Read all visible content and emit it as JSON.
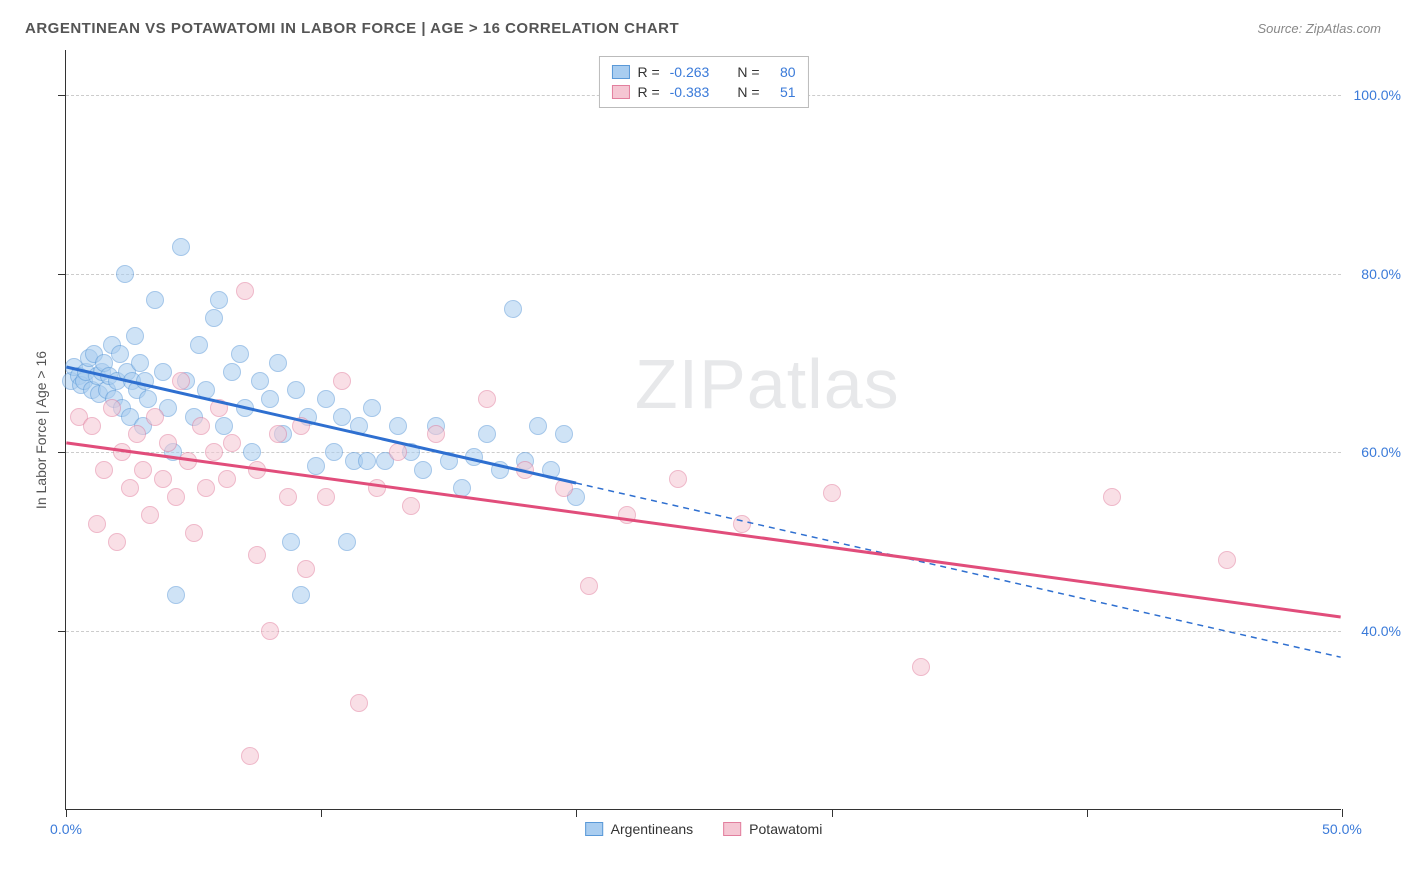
{
  "title": "ARGENTINEAN VS POTAWATOMI IN LABOR FORCE | AGE > 16 CORRELATION CHART",
  "source": "Source: ZipAtlas.com",
  "watermark": "ZIPatlas",
  "y_axis_title": "In Labor Force | Age > 16",
  "chart": {
    "type": "scatter",
    "xlim": [
      0,
      50
    ],
    "ylim": [
      20,
      105
    ],
    "x_ticks": [
      0,
      10,
      20,
      30,
      40,
      50
    ],
    "y_ticks": [
      40,
      60,
      80,
      100
    ],
    "x_tick_labels": {
      "0": "0.0%",
      "50": "50.0%"
    },
    "y_tick_labels": {
      "40": "40.0%",
      "60": "60.0%",
      "80": "80.0%",
      "100": "100.0%"
    },
    "grid_color": "#cccccc",
    "background_color": "#ffffff",
    "axis_color": "#333333",
    "tick_label_color": "#3a7ad9",
    "marker_radius": 9,
    "marker_opacity": 0.55,
    "series": [
      {
        "name": "Argentineans",
        "fill": "#a9cdf0",
        "stroke": "#5a99d8",
        "line_color": "#2e6fd0",
        "R": "-0.263",
        "N": "80",
        "trend": {
          "x1": 0,
          "y1": 69.5,
          "x2": 20,
          "y2": 56.5,
          "dash_x2": 50,
          "dash_y2": 37
        },
        "points": [
          [
            0.2,
            68
          ],
          [
            0.3,
            69.5
          ],
          [
            0.5,
            68.5
          ],
          [
            0.6,
            67.5
          ],
          [
            0.7,
            68
          ],
          [
            0.8,
            69
          ],
          [
            0.9,
            70.5
          ],
          [
            1.0,
            67
          ],
          [
            1.1,
            71
          ],
          [
            1.2,
            68.5
          ],
          [
            1.3,
            66.5
          ],
          [
            1.4,
            69
          ],
          [
            1.5,
            70
          ],
          [
            1.6,
            67
          ],
          [
            1.7,
            68.5
          ],
          [
            1.8,
            72
          ],
          [
            1.9,
            66
          ],
          [
            2.0,
            68
          ],
          [
            2.1,
            71
          ],
          [
            2.2,
            65
          ],
          [
            2.3,
            80
          ],
          [
            2.4,
            69
          ],
          [
            2.5,
            64
          ],
          [
            2.6,
            68
          ],
          [
            2.7,
            73
          ],
          [
            2.8,
            67
          ],
          [
            2.9,
            70
          ],
          [
            3.0,
            63
          ],
          [
            3.1,
            68
          ],
          [
            3.2,
            66
          ],
          [
            3.5,
            77
          ],
          [
            3.8,
            69
          ],
          [
            4.0,
            65
          ],
          [
            4.2,
            60
          ],
          [
            4.5,
            83
          ],
          [
            4.7,
            68
          ],
          [
            5.0,
            64
          ],
          [
            5.2,
            72
          ],
          [
            5.5,
            67
          ],
          [
            5.8,
            75
          ],
          [
            6.0,
            77
          ],
          [
            6.2,
            63
          ],
          [
            6.5,
            69
          ],
          [
            6.8,
            71
          ],
          [
            7.0,
            65
          ],
          [
            7.3,
            60
          ],
          [
            7.6,
            68
          ],
          [
            8.0,
            66
          ],
          [
            8.3,
            70
          ],
          [
            8.5,
            62
          ],
          [
            8.8,
            50
          ],
          [
            9.0,
            67
          ],
          [
            9.2,
            44
          ],
          [
            9.5,
            64
          ],
          [
            9.8,
            58.5
          ],
          [
            10.2,
            66
          ],
          [
            10.5,
            60
          ],
          [
            10.8,
            64
          ],
          [
            11.0,
            50
          ],
          [
            11.3,
            59
          ],
          [
            11.5,
            63
          ],
          [
            11.8,
            59
          ],
          [
            12.0,
            65
          ],
          [
            12.5,
            59
          ],
          [
            13.0,
            63
          ],
          [
            13.5,
            60
          ],
          [
            14.0,
            58
          ],
          [
            14.5,
            63
          ],
          [
            15.0,
            59
          ],
          [
            15.5,
            56
          ],
          [
            16.0,
            59.5
          ],
          [
            16.5,
            62
          ],
          [
            17.0,
            58
          ],
          [
            17.5,
            76
          ],
          [
            18.0,
            59
          ],
          [
            18.5,
            63
          ],
          [
            19.0,
            58
          ],
          [
            19.5,
            62
          ],
          [
            20.0,
            55
          ],
          [
            4.3,
            44
          ]
        ]
      },
      {
        "name": "Potawatomi",
        "fill": "#f5c6d3",
        "stroke": "#e27f9e",
        "line_color": "#e14d7b",
        "R": "-0.383",
        "N": "51",
        "trend": {
          "x1": 0,
          "y1": 61,
          "x2": 50,
          "y2": 41.5
        },
        "points": [
          [
            0.5,
            64
          ],
          [
            1.0,
            63
          ],
          [
            1.2,
            52
          ],
          [
            1.5,
            58
          ],
          [
            1.8,
            65
          ],
          [
            2.0,
            50
          ],
          [
            2.2,
            60
          ],
          [
            2.5,
            56
          ],
          [
            2.8,
            62
          ],
          [
            3.0,
            58
          ],
          [
            3.3,
            53
          ],
          [
            3.5,
            64
          ],
          [
            3.8,
            57
          ],
          [
            4.0,
            61
          ],
          [
            4.3,
            55
          ],
          [
            4.5,
            68
          ],
          [
            4.8,
            59
          ],
          [
            5.0,
            51
          ],
          [
            5.3,
            63
          ],
          [
            5.5,
            56
          ],
          [
            5.8,
            60
          ],
          [
            6.0,
            65
          ],
          [
            6.3,
            57
          ],
          [
            6.5,
            61
          ],
          [
            7.0,
            78
          ],
          [
            7.2,
            26
          ],
          [
            7.5,
            58
          ],
          [
            8.0,
            40
          ],
          [
            8.3,
            62
          ],
          [
            8.7,
            55
          ],
          [
            9.2,
            63
          ],
          [
            7.5,
            48.5
          ],
          [
            10.2,
            55
          ],
          [
            10.8,
            68
          ],
          [
            11.5,
            32
          ],
          [
            12.2,
            56
          ],
          [
            13.0,
            60
          ],
          [
            13.5,
            54
          ],
          [
            14.5,
            62
          ],
          [
            9.4,
            47
          ],
          [
            16.5,
            66
          ],
          [
            18.0,
            58
          ],
          [
            19.5,
            56
          ],
          [
            20.5,
            45
          ],
          [
            22.0,
            53
          ],
          [
            24.0,
            57
          ],
          [
            26.5,
            52
          ],
          [
            30.0,
            55.5
          ],
          [
            33.5,
            36
          ],
          [
            41.0,
            55
          ],
          [
            45.5,
            48
          ]
        ]
      }
    ]
  },
  "legend_top": [
    {
      "series": 0,
      "r_label": "R =",
      "n_label": "N ="
    },
    {
      "series": 1,
      "r_label": "R =",
      "n_label": "N ="
    }
  ]
}
